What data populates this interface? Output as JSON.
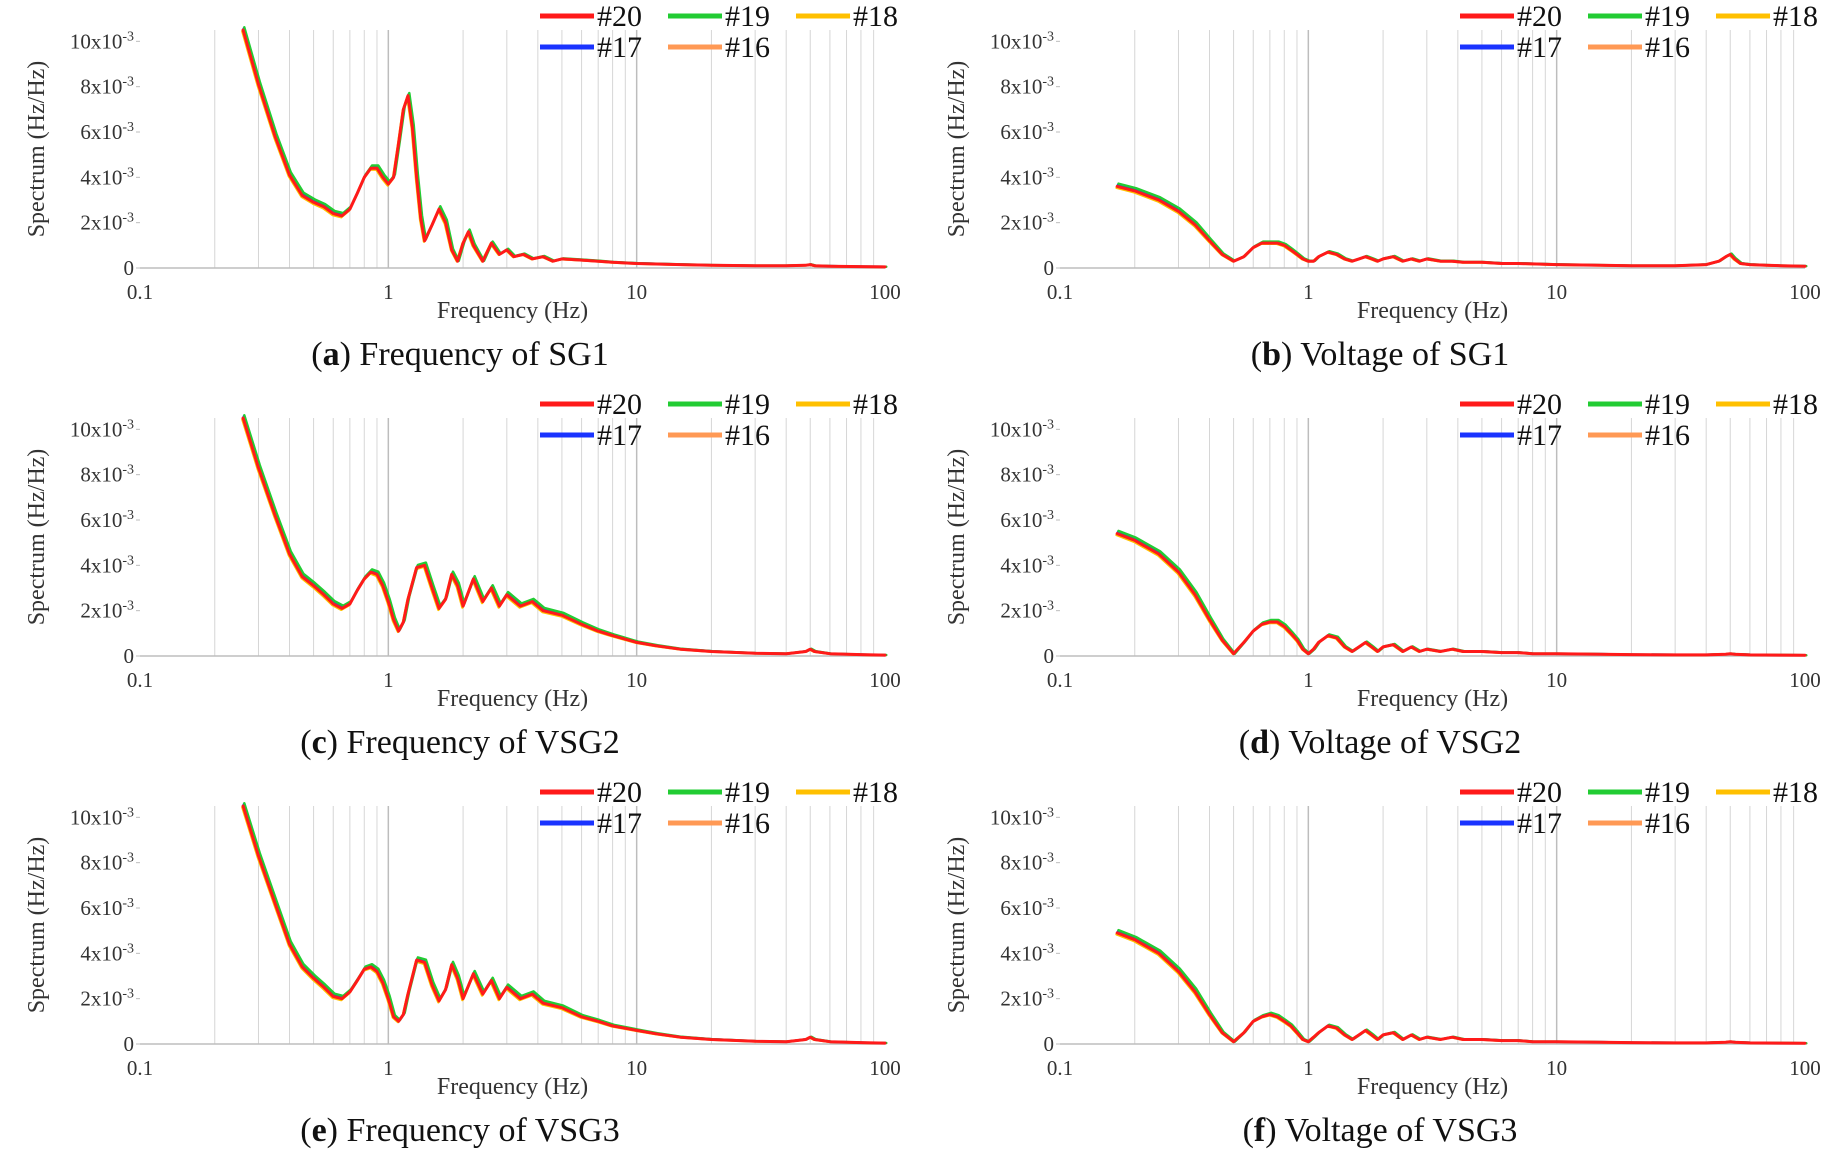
{
  "chart_data": [
    {
      "id": "a",
      "type": "line",
      "caption_letter": "a",
      "caption_text": " Frequency of SG1",
      "xlabel": "Frequency (Hz)",
      "ylabel": "Spectrum (Hz/Hz)",
      "x_scale": "log",
      "xlim": [
        0.1,
        100
      ],
      "ylim": [
        0,
        0.0105
      ],
      "xticks": [
        "0.1",
        "1",
        "10",
        "100"
      ],
      "yticks": [
        {
          "value": 0,
          "base": "0",
          "exp": ""
        },
        {
          "value": 0.002,
          "base": "2x10",
          "exp": "-3"
        },
        {
          "value": 0.004,
          "base": "4x10",
          "exp": "-3"
        },
        {
          "value": 0.006,
          "base": "6x10",
          "exp": "-3"
        },
        {
          "value": 0.008,
          "base": "8x10",
          "exp": "-3"
        },
        {
          "value": 0.01,
          "base": "10x10",
          "exp": "-3"
        }
      ],
      "grid": "vertical, log minor",
      "legend_position": "top-right",
      "series": [
        {
          "name": "#20",
          "color": "#ff1a1a"
        },
        {
          "name": "#19",
          "color": "#22cc33"
        },
        {
          "name": "#18",
          "color": "#ffc000"
        },
        {
          "name": "#17",
          "color": "#1a33ff"
        },
        {
          "name": "#16",
          "color": "#ff9955"
        }
      ],
      "x": [
        0.26,
        0.3,
        0.35,
        0.4,
        0.45,
        0.5,
        0.55,
        0.6,
        0.65,
        0.7,
        0.75,
        0.8,
        0.85,
        0.9,
        0.95,
        1.0,
        1.05,
        1.1,
        1.15,
        1.2,
        1.25,
        1.3,
        1.35,
        1.4,
        1.5,
        1.6,
        1.7,
        1.8,
        1.9,
        2.0,
        2.1,
        2.2,
        2.4,
        2.6,
        2.8,
        3.0,
        3.2,
        3.5,
        3.8,
        4.2,
        4.6,
        5.0,
        6.0,
        7.0,
        8.0,
        10,
        15,
        20,
        30,
        40,
        48,
        50,
        52,
        60,
        80,
        100
      ],
      "y": [
        0.0105,
        0.0081,
        0.0058,
        0.0041,
        0.0032,
        0.0029,
        0.0027,
        0.0024,
        0.0023,
        0.0026,
        0.0033,
        0.004,
        0.0044,
        0.0044,
        0.004,
        0.0037,
        0.004,
        0.0055,
        0.007,
        0.0076,
        0.0062,
        0.004,
        0.0022,
        0.0012,
        0.0019,
        0.0026,
        0.002,
        0.0008,
        0.0003,
        0.0011,
        0.0016,
        0.001,
        0.0003,
        0.0011,
        0.0006,
        0.0008,
        0.0005,
        0.0006,
        0.0004,
        0.0005,
        0.0003,
        0.0004,
        0.00035,
        0.0003,
        0.00025,
        0.0002,
        0.00015,
        0.00012,
        0.0001,
        0.0001,
        0.00012,
        0.00015,
        0.0001,
        8e-05,
        6e-05,
        5e-05
      ]
    },
    {
      "id": "b",
      "type": "line",
      "caption_letter": "b",
      "caption_text": " Voltage of SG1",
      "xlabel": "Frequency (Hz)",
      "ylabel": "Spectrum (Hz/Hz)",
      "x_scale": "log",
      "xlim": [
        0.1,
        100
      ],
      "ylim": [
        0,
        0.0105
      ],
      "xticks": [
        "0.1",
        "1",
        "10",
        "100"
      ],
      "yticks": [
        {
          "value": 0,
          "base": "0",
          "exp": ""
        },
        {
          "value": 0.002,
          "base": "2x10",
          "exp": "-3"
        },
        {
          "value": 0.004,
          "base": "4x10",
          "exp": "-3"
        },
        {
          "value": 0.006,
          "base": "6x10",
          "exp": "-3"
        },
        {
          "value": 0.008,
          "base": "8x10",
          "exp": "-3"
        },
        {
          "value": 0.01,
          "base": "10x10",
          "exp": "-3"
        }
      ],
      "grid": "vertical, log minor",
      "legend_position": "top-right",
      "series": [
        {
          "name": "#20",
          "color": "#ff1a1a"
        },
        {
          "name": "#19",
          "color": "#22cc33"
        },
        {
          "name": "#18",
          "color": "#ffc000"
        },
        {
          "name": "#17",
          "color": "#1a33ff"
        },
        {
          "name": "#16",
          "color": "#ff9955"
        }
      ],
      "x": [
        0.17,
        0.2,
        0.25,
        0.3,
        0.35,
        0.4,
        0.45,
        0.5,
        0.55,
        0.6,
        0.65,
        0.7,
        0.75,
        0.8,
        0.85,
        0.9,
        0.95,
        1.0,
        1.05,
        1.1,
        1.2,
        1.3,
        1.4,
        1.5,
        1.6,
        1.7,
        1.8,
        1.9,
        2.0,
        2.2,
        2.4,
        2.6,
        2.8,
        3.0,
        3.4,
        3.8,
        4.2,
        5,
        6,
        7,
        8,
        10,
        15,
        20,
        30,
        40,
        45,
        48,
        50,
        52,
        55,
        60,
        70,
        80,
        100
      ],
      "y": [
        0.0036,
        0.0034,
        0.003,
        0.0025,
        0.0019,
        0.0012,
        0.0006,
        0.0003,
        0.0005,
        0.0009,
        0.0011,
        0.0011,
        0.0011,
        0.001,
        0.0008,
        0.0006,
        0.0004,
        0.0003,
        0.0003,
        0.0005,
        0.0007,
        0.0006,
        0.0004,
        0.0003,
        0.0004,
        0.0005,
        0.0004,
        0.0003,
        0.0004,
        0.0005,
        0.0003,
        0.0004,
        0.0003,
        0.0004,
        0.0003,
        0.0003,
        0.00025,
        0.00025,
        0.0002,
        0.0002,
        0.00018,
        0.00015,
        0.00012,
        0.0001,
        0.0001,
        0.00015,
        0.0003,
        0.0005,
        0.0006,
        0.0004,
        0.0002,
        0.00015,
        0.00012,
        0.0001,
        8e-05
      ]
    },
    {
      "id": "c",
      "type": "line",
      "caption_letter": "c",
      "caption_text": " Frequency of VSG2",
      "xlabel": "Frequency (Hz)",
      "ylabel": "Spectrum (Hz/Hz)",
      "x_scale": "log",
      "xlim": [
        0.1,
        100
      ],
      "ylim": [
        0,
        0.0105
      ],
      "xticks": [
        "0.1",
        "1",
        "10",
        "100"
      ],
      "yticks": [
        {
          "value": 0,
          "base": "0",
          "exp": ""
        },
        {
          "value": 0.002,
          "base": "2x10",
          "exp": "-3"
        },
        {
          "value": 0.004,
          "base": "4x10",
          "exp": "-3"
        },
        {
          "value": 0.006,
          "base": "6x10",
          "exp": "-3"
        },
        {
          "value": 0.008,
          "base": "8x10",
          "exp": "-3"
        },
        {
          "value": 0.01,
          "base": "10x10",
          "exp": "-3"
        }
      ],
      "grid": "vertical, log minor",
      "legend_position": "top-right",
      "series": [
        {
          "name": "#20",
          "color": "#ff1a1a"
        },
        {
          "name": "#19",
          "color": "#22cc33"
        },
        {
          "name": "#18",
          "color": "#ffc000"
        },
        {
          "name": "#17",
          "color": "#1a33ff"
        },
        {
          "name": "#16",
          "color": "#ff9955"
        }
      ],
      "x": [
        0.26,
        0.3,
        0.35,
        0.4,
        0.45,
        0.5,
        0.55,
        0.6,
        0.65,
        0.7,
        0.75,
        0.8,
        0.85,
        0.9,
        0.95,
        1.0,
        1.05,
        1.1,
        1.15,
        1.2,
        1.3,
        1.4,
        1.5,
        1.6,
        1.7,
        1.8,
        1.9,
        2.0,
        2.2,
        2.4,
        2.6,
        2.8,
        3.0,
        3.4,
        3.8,
        4.2,
        5,
        6,
        7,
        8,
        10,
        12,
        15,
        20,
        30,
        40,
        48,
        50,
        52,
        60,
        80,
        100
      ],
      "y": [
        0.0105,
        0.0083,
        0.0062,
        0.0045,
        0.0035,
        0.0031,
        0.0027,
        0.0023,
        0.0021,
        0.0023,
        0.0029,
        0.0034,
        0.0037,
        0.0036,
        0.0031,
        0.0024,
        0.0016,
        0.0011,
        0.0015,
        0.0025,
        0.0039,
        0.004,
        0.003,
        0.0021,
        0.0025,
        0.0036,
        0.0031,
        0.0022,
        0.0034,
        0.0024,
        0.003,
        0.0022,
        0.0027,
        0.0022,
        0.0024,
        0.002,
        0.0018,
        0.0014,
        0.0011,
        0.0009,
        0.0006,
        0.00045,
        0.0003,
        0.0002,
        0.00012,
        0.0001,
        0.0002,
        0.0003,
        0.0002,
        0.0001,
        6e-05,
        4e-05
      ]
    },
    {
      "id": "d",
      "type": "line",
      "caption_letter": "d",
      "caption_text": " Voltage of VSG2",
      "xlabel": "Frequency (Hz)",
      "ylabel": "Spectrum (Hz/Hz)",
      "x_scale": "log",
      "xlim": [
        0.1,
        100
      ],
      "ylim": [
        0,
        0.0105
      ],
      "xticks": [
        "0.1",
        "1",
        "10",
        "100"
      ],
      "yticks": [
        {
          "value": 0,
          "base": "0",
          "exp": ""
        },
        {
          "value": 0.002,
          "base": "2x10",
          "exp": "-3"
        },
        {
          "value": 0.004,
          "base": "4x10",
          "exp": "-3"
        },
        {
          "value": 0.006,
          "base": "6x10",
          "exp": "-3"
        },
        {
          "value": 0.008,
          "base": "8x10",
          "exp": "-3"
        },
        {
          "value": 0.01,
          "base": "10x10",
          "exp": "-3"
        }
      ],
      "grid": "vertical, log minor",
      "legend_position": "top-right",
      "series": [
        {
          "name": "#20",
          "color": "#ff1a1a"
        },
        {
          "name": "#19",
          "color": "#22cc33"
        },
        {
          "name": "#18",
          "color": "#ffc000"
        },
        {
          "name": "#17",
          "color": "#1a33ff"
        },
        {
          "name": "#16",
          "color": "#ff9955"
        }
      ],
      "x": [
        0.17,
        0.2,
        0.25,
        0.3,
        0.35,
        0.4,
        0.45,
        0.5,
        0.55,
        0.6,
        0.65,
        0.7,
        0.75,
        0.8,
        0.85,
        0.9,
        0.95,
        1.0,
        1.05,
        1.1,
        1.2,
        1.3,
        1.4,
        1.5,
        1.6,
        1.7,
        1.8,
        1.9,
        2.0,
        2.2,
        2.4,
        2.6,
        2.8,
        3.0,
        3.4,
        3.8,
        4.2,
        5,
        6,
        7,
        8,
        10,
        15,
        20,
        30,
        40,
        48,
        50,
        52,
        60,
        80,
        100
      ],
      "y": [
        0.0054,
        0.0051,
        0.0045,
        0.0037,
        0.0027,
        0.0016,
        0.0007,
        0.0001,
        0.0006,
        0.0011,
        0.0014,
        0.0015,
        0.0015,
        0.0013,
        0.001,
        0.0007,
        0.0003,
        0.0001,
        0.0003,
        0.0006,
        0.0009,
        0.0008,
        0.0004,
        0.0002,
        0.0004,
        0.0006,
        0.0004,
        0.0002,
        0.0004,
        0.0005,
        0.0002,
        0.0004,
        0.0002,
        0.0003,
        0.0002,
        0.0003,
        0.0002,
        0.0002,
        0.00015,
        0.00015,
        0.0001,
        0.0001,
        8e-05,
        6e-05,
        5e-05,
        5e-05,
        8e-05,
        0.0001,
        8e-05,
        5e-05,
        4e-05,
        3e-05
      ]
    },
    {
      "id": "e",
      "type": "line",
      "caption_letter": "e",
      "caption_text": " Frequency of VSG3",
      "xlabel": "Frequency (Hz)",
      "ylabel": "Spectrum (Hz/Hz)",
      "x_scale": "log",
      "xlim": [
        0.1,
        100
      ],
      "ylim": [
        0,
        0.0105
      ],
      "xticks": [
        "0.1",
        "1",
        "10",
        "100"
      ],
      "yticks": [
        {
          "value": 0,
          "base": "0",
          "exp": ""
        },
        {
          "value": 0.002,
          "base": "2x10",
          "exp": "-3"
        },
        {
          "value": 0.004,
          "base": "4x10",
          "exp": "-3"
        },
        {
          "value": 0.006,
          "base": "6x10",
          "exp": "-3"
        },
        {
          "value": 0.008,
          "base": "8x10",
          "exp": "-3"
        },
        {
          "value": 0.01,
          "base": "10x10",
          "exp": "-3"
        }
      ],
      "grid": "vertical, log minor",
      "legend_position": "top-right",
      "series": [
        {
          "name": "#20",
          "color": "#ff1a1a"
        },
        {
          "name": "#19",
          "color": "#22cc33"
        },
        {
          "name": "#18",
          "color": "#ffc000"
        },
        {
          "name": "#17",
          "color": "#1a33ff"
        },
        {
          "name": "#16",
          "color": "#ff9955"
        }
      ],
      "x": [
        0.26,
        0.3,
        0.35,
        0.4,
        0.45,
        0.5,
        0.55,
        0.6,
        0.65,
        0.7,
        0.75,
        0.8,
        0.85,
        0.9,
        0.95,
        1.0,
        1.05,
        1.1,
        1.15,
        1.2,
        1.3,
        1.4,
        1.5,
        1.6,
        1.7,
        1.8,
        1.9,
        2.0,
        2.2,
        2.4,
        2.6,
        2.8,
        3.0,
        3.4,
        3.8,
        4.2,
        5,
        6,
        7,
        8,
        10,
        12,
        15,
        20,
        30,
        40,
        48,
        50,
        52,
        60,
        80,
        100
      ],
      "y": [
        0.0105,
        0.0083,
        0.0062,
        0.0044,
        0.0034,
        0.0029,
        0.0025,
        0.0021,
        0.002,
        0.0023,
        0.0028,
        0.0033,
        0.0034,
        0.0032,
        0.0027,
        0.002,
        0.0012,
        0.001,
        0.0013,
        0.0022,
        0.0037,
        0.0036,
        0.0026,
        0.0019,
        0.0024,
        0.0035,
        0.0029,
        0.002,
        0.0031,
        0.0022,
        0.0028,
        0.002,
        0.0025,
        0.002,
        0.0022,
        0.0018,
        0.0016,
        0.0012,
        0.001,
        0.0008,
        0.0006,
        0.00045,
        0.0003,
        0.0002,
        0.00012,
        0.0001,
        0.0002,
        0.0003,
        0.0002,
        0.0001,
        6e-05,
        4e-05
      ]
    },
    {
      "id": "f",
      "type": "line",
      "caption_letter": "f",
      "caption_text": " Voltage of VSG3",
      "xlabel": "Frequency (Hz)",
      "ylabel": "Spectrum (Hz/Hz)",
      "x_scale": "log",
      "xlim": [
        0.1,
        100
      ],
      "ylim": [
        0,
        0.0105
      ],
      "xticks": [
        "0.1",
        "1",
        "10",
        "100"
      ],
      "yticks": [
        {
          "value": 0,
          "base": "0",
          "exp": ""
        },
        {
          "value": 0.002,
          "base": "2x10",
          "exp": "-3"
        },
        {
          "value": 0.004,
          "base": "4x10",
          "exp": "-3"
        },
        {
          "value": 0.006,
          "base": "6x10",
          "exp": "-3"
        },
        {
          "value": 0.008,
          "base": "8x10",
          "exp": "-3"
        },
        {
          "value": 0.01,
          "base": "10x10",
          "exp": "-3"
        }
      ],
      "grid": "vertical, log minor",
      "legend_position": "top-right",
      "series": [
        {
          "name": "#20",
          "color": "#ff1a1a"
        },
        {
          "name": "#19",
          "color": "#22cc33"
        },
        {
          "name": "#18",
          "color": "#ffc000"
        },
        {
          "name": "#17",
          "color": "#1a33ff"
        },
        {
          "name": "#16",
          "color": "#ff9955"
        }
      ],
      "x": [
        0.17,
        0.2,
        0.25,
        0.3,
        0.35,
        0.4,
        0.45,
        0.5,
        0.55,
        0.6,
        0.65,
        0.7,
        0.75,
        0.8,
        0.85,
        0.9,
        0.95,
        1.0,
        1.05,
        1.1,
        1.2,
        1.3,
        1.4,
        1.5,
        1.6,
        1.7,
        1.8,
        1.9,
        2.0,
        2.2,
        2.4,
        2.6,
        2.8,
        3.0,
        3.4,
        3.8,
        4.2,
        5,
        6,
        7,
        8,
        10,
        15,
        20,
        30,
        40,
        48,
        50,
        52,
        60,
        80,
        100
      ],
      "y": [
        0.0049,
        0.0046,
        0.004,
        0.0032,
        0.0023,
        0.0013,
        0.0005,
        0.0001,
        0.0005,
        0.001,
        0.0012,
        0.0013,
        0.0012,
        0.001,
        0.0008,
        0.0005,
        0.0002,
        0.0001,
        0.0003,
        0.0005,
        0.0008,
        0.0007,
        0.0004,
        0.0002,
        0.0004,
        0.0006,
        0.0004,
        0.0002,
        0.0004,
        0.0005,
        0.0002,
        0.0004,
        0.0002,
        0.0003,
        0.0002,
        0.0003,
        0.0002,
        0.0002,
        0.00015,
        0.00015,
        0.0001,
        0.0001,
        8e-05,
        6e-05,
        5e-05,
        5e-05,
        8e-05,
        0.0001,
        8e-05,
        5e-05,
        4e-05,
        3e-05
      ]
    }
  ]
}
